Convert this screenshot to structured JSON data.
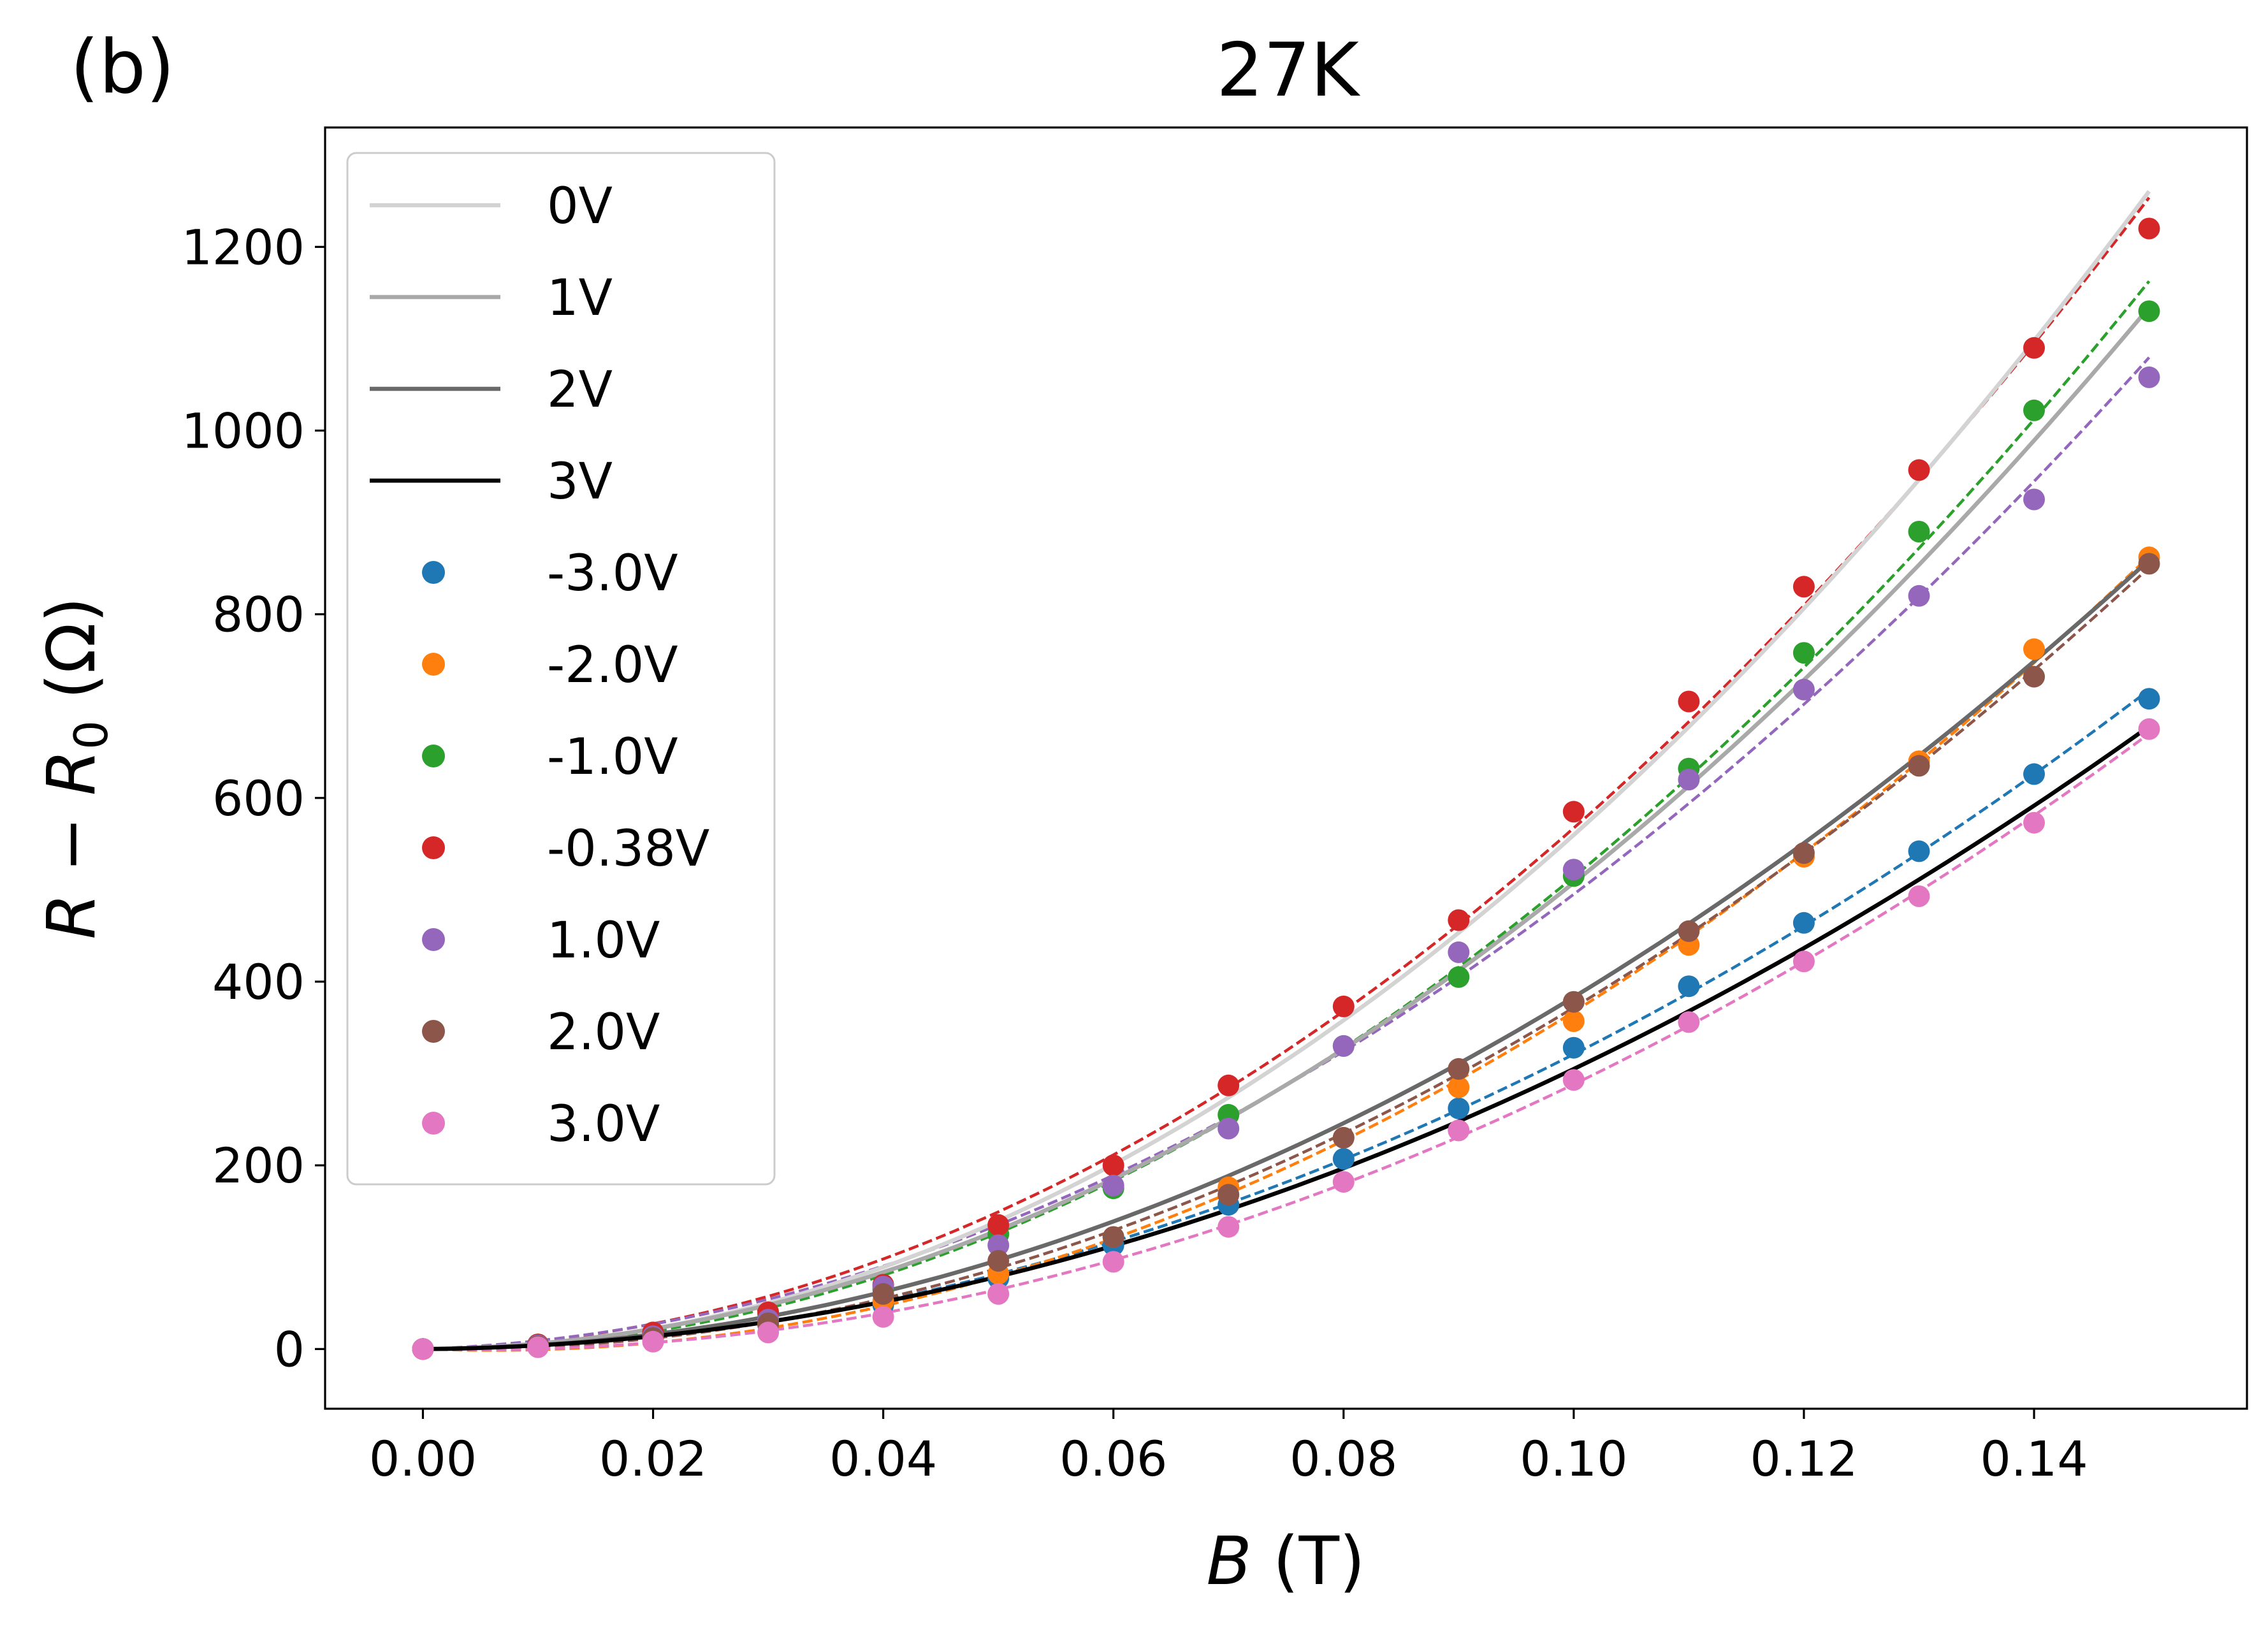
{
  "panel_label": "(b)",
  "chart_data": {
    "type": "scatter",
    "title": "27K",
    "xlabel": {
      "var": "B",
      "unit": " (T)"
    },
    "ylabel": {
      "var": "R",
      "minus": " − ",
      "sub_var": "R",
      "sub": "0",
      "unit": " (Ω)"
    },
    "xlim": [
      -0.0085,
      0.1585
    ],
    "ylim": [
      -65,
      1330
    ],
    "xticks": [
      0.0,
      0.02,
      0.04,
      0.06,
      0.08,
      0.1,
      0.12,
      0.14
    ],
    "xtick_labels": [
      "0.00",
      "0.02",
      "0.04",
      "0.06",
      "0.08",
      "0.10",
      "0.12",
      "0.14"
    ],
    "yticks": [
      0,
      200,
      400,
      600,
      800,
      1000,
      1200
    ],
    "ytick_labels": [
      "0",
      "200",
      "400",
      "600",
      "800",
      "1000",
      "1200"
    ],
    "grid": false,
    "legend_position": "upper-left",
    "x": [
      0.0,
      0.01,
      0.02,
      0.03,
      0.04,
      0.05,
      0.06,
      0.07,
      0.08,
      0.09,
      0.1,
      0.11,
      0.12,
      0.13,
      0.14,
      0.15
    ],
    "lines": [
      {
        "name": "0V",
        "color": "#d3d3d3",
        "values": [
          0,
          6,
          22,
          50,
          90,
          140,
          200,
          273,
          358,
          455,
          563,
          680,
          805,
          940,
          1090,
          1270
        ]
      },
      {
        "name": "1V",
        "color": "#a9a9a9",
        "values": [
          0,
          6,
          21,
          46,
          82,
          128,
          184,
          250,
          327,
          413,
          509,
          616,
          730,
          855,
          990,
          1130
        ]
      },
      {
        "name": "2V",
        "color": "#696969",
        "values": [
          0,
          4,
          15,
          34,
          62,
          97,
          140,
          191,
          249,
          313,
          384,
          462,
          547,
          640,
          742,
          870
        ]
      },
      {
        "name": "3V",
        "color": "#000000",
        "values": [
          0,
          3,
          12,
          27,
          48,
          76,
          110,
          150,
          196,
          248,
          307,
          372,
          443,
          521,
          588,
          668
        ]
      }
    ],
    "series": [
      {
        "name": "-3.0V",
        "color": "#1f77b4",
        "values": [
          0,
          3,
          11,
          26,
          48,
          77,
          113,
          157,
          207,
          262,
          328,
          395,
          464,
          542,
          626,
          708
        ]
      },
      {
        "name": "-2.0V",
        "color": "#ff7f0e",
        "values": [
          0,
          3,
          12,
          27,
          52,
          82,
          122,
          176,
          230,
          285,
          357,
          440,
          536,
          640,
          762,
          862
        ]
      },
      {
        "name": "-1.0V",
        "color": "#2ca02c",
        "values": [
          0,
          5,
          18,
          38,
          65,
          125,
          175,
          255,
          330,
          405,
          515,
          632,
          758,
          890,
          1022,
          1130
        ]
      },
      {
        "name": "-0.38V",
        "color": "#d62728",
        "values": [
          0,
          5,
          18,
          40,
          70,
          135,
          200,
          287,
          373,
          467,
          585,
          705,
          830,
          957,
          1090,
          1220
        ]
      },
      {
        "name": "1.0V",
        "color": "#9467bd",
        "values": [
          0,
          4,
          14,
          32,
          68,
          113,
          178,
          240,
          330,
          432,
          522,
          620,
          718,
          820,
          925,
          1058
        ]
      },
      {
        "name": "2.0V",
        "color": "#8c564b",
        "values": [
          0,
          3,
          12,
          28,
          60,
          96,
          122,
          168,
          230,
          305,
          378,
          455,
          540,
          635,
          732,
          855
        ]
      },
      {
        "name": "3.0V",
        "color": "#e377c2",
        "values": [
          0,
          2,
          8,
          18,
          35,
          60,
          95,
          133,
          182,
          238,
          293,
          356,
          422,
          493,
          573,
          675
        ]
      }
    ]
  }
}
